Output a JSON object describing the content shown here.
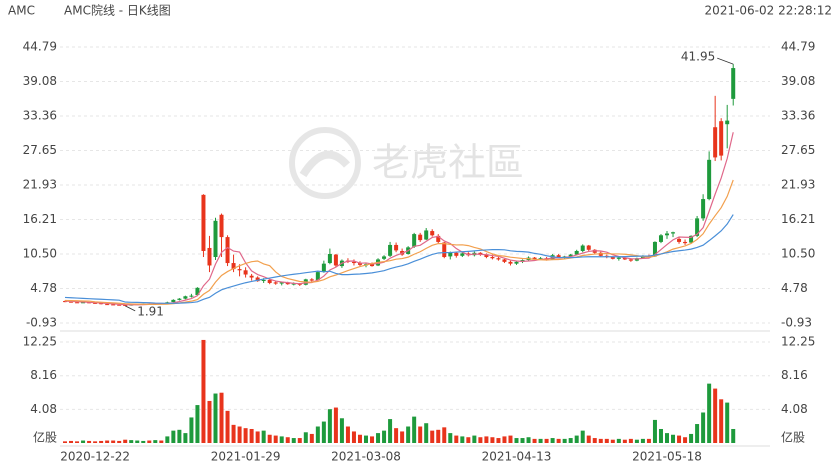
{
  "chart_data": {
    "type": "candlestick",
    "symbol": "AMC",
    "title": "AMC院线 - 日K线图",
    "timestamp": "2021-06-02 22:28:12",
    "watermark": "老虎社區",
    "up_color": "#1e9a3c",
    "down_color": "#e8341c",
    "grid": true,
    "ylim": [
      -0.93,
      44.79
    ],
    "yticks": [
      -0.93,
      4.78,
      {
        "value": 10.5,
        "label": "10.50"
      },
      16.21,
      21.93,
      27.65,
      33.36,
      39.08,
      44.79
    ],
    "categories": [
      null,
      null,
      null,
      null,
      null,
      "2020-12-22",
      null,
      null,
      null,
      null,
      null,
      null,
      null,
      null,
      null,
      null,
      null,
      null,
      null,
      null,
      null,
      null,
      null,
      null,
      null,
      null,
      null,
      null,
      null,
      null,
      "2021-01-29",
      null,
      null,
      null,
      null,
      null,
      null,
      null,
      null,
      null,
      null,
      null,
      null,
      null,
      null,
      null,
      null,
      null,
      null,
      null,
      "2021-03-08",
      null,
      null,
      null,
      null,
      null,
      null,
      null,
      null,
      null,
      null,
      null,
      null,
      null,
      null,
      null,
      null,
      null,
      null,
      null,
      null,
      null,
      null,
      null,
      null,
      "2021-04-13",
      null,
      null,
      null,
      null,
      null,
      null,
      null,
      null,
      null,
      null,
      null,
      null,
      null,
      null,
      null,
      null,
      null,
      null,
      null,
      null,
      null,
      null,
      null,
      null,
      "2021-05-18",
      null,
      null,
      null,
      null,
      null,
      null,
      null,
      null,
      null,
      null,
      null
    ],
    "open": [
      2.7,
      2.6,
      2.5,
      2.45,
      2.5,
      2.4,
      2.35,
      2.2,
      2.15,
      2.1,
      2.05,
      2.0,
      2.12,
      2.2,
      2.25,
      2.2,
      2.3,
      2.3,
      2.55,
      2.9,
      3.1,
      3.5,
      3.7,
      20.3,
      11.5,
      10.0,
      17.0,
      13.3,
      9.0,
      8.0,
      7.8,
      6.9,
      6.6,
      6.1,
      6.2,
      5.8,
      5.6,
      5.8,
      5.5,
      5.6,
      5.4,
      6.3,
      6.2,
      7.6,
      9.0,
      10.4,
      8.5,
      9.4,
      9.2,
      9.0,
      8.6,
      8.9,
      8.6,
      9.7,
      10.2,
      12.0,
      11.0,
      10.5,
      11.7,
      13.7,
      12.9,
      14.3,
      13.5,
      12.4,
      10.1,
      10.7,
      10.2,
      10.6,
      10.3,
      10.7,
      10.4,
      10.0,
      9.8,
      9.6,
      9.2,
      8.9,
      9.2,
      9.5,
      9.9,
      9.6,
      9.8,
      9.6,
      10.3,
      9.9,
      10.1,
      10.4,
      11.0,
      11.9,
      11.2,
      10.7,
      10.2,
      10.0,
      9.7,
      9.9,
      9.6,
      9.4,
      9.8,
      10.2,
      10.1,
      12.5,
      13.6,
      13.9,
      13.0,
      12.5,
      12.4,
      13.5,
      16.4,
      19.6,
      31.5,
      32.5,
      32.0,
      36.2
    ],
    "high": [
      2.8,
      2.7,
      2.6,
      2.6,
      2.55,
      2.45,
      2.4,
      2.25,
      2.2,
      2.15,
      2.1,
      2.18,
      2.25,
      2.3,
      2.3,
      2.35,
      2.35,
      2.6,
      3.0,
      3.2,
      3.6,
      3.9,
      5.0,
      20.4,
      13.5,
      16.5,
      17.2,
      13.6,
      10.4,
      8.8,
      8.3,
      7.2,
      6.8,
      6.5,
      6.3,
      6.1,
      5.9,
      5.9,
      5.8,
      5.7,
      6.4,
      6.5,
      7.6,
      9.4,
      11.4,
      10.5,
      9.6,
      9.8,
      9.6,
      9.3,
      9.0,
      9.1,
      9.8,
      10.3,
      12.5,
      12.4,
      11.4,
      11.8,
      14.0,
      14.0,
      14.8,
      14.6,
      13.8,
      12.5,
      10.9,
      10.9,
      10.8,
      10.8,
      10.9,
      10.8,
      10.6,
      10.4,
      10.0,
      9.7,
      9.4,
      9.3,
      9.6,
      10.1,
      10.0,
      10.0,
      10.0,
      10.5,
      10.5,
      10.2,
      10.5,
      11.2,
      12.1,
      12.0,
      11.3,
      10.9,
      10.4,
      10.1,
      10.0,
      10.1,
      9.8,
      9.9,
      10.3,
      10.4,
      12.6,
      13.8,
      14.3,
      14.2,
      13.4,
      12.9,
      13.6,
      16.8,
      20.4,
      27.5,
      36.7,
      33.0,
      35.2,
      41.95
    ],
    "low": [
      2.5,
      2.45,
      2.4,
      2.4,
      2.35,
      2.25,
      2.15,
      2.1,
      2.05,
      1.98,
      1.91,
      1.95,
      2.08,
      2.15,
      2.15,
      2.15,
      2.2,
      2.28,
      2.5,
      2.8,
      3.0,
      3.3,
      3.6,
      10.0,
      7.5,
      9.5,
      10.0,
      8.5,
      7.5,
      6.8,
      6.6,
      6.1,
      5.9,
      5.7,
      5.5,
      5.4,
      5.3,
      5.4,
      5.3,
      5.2,
      5.3,
      5.8,
      6.1,
      7.4,
      8.8,
      8.3,
      8.2,
      9.0,
      8.6,
      8.5,
      8.3,
      8.4,
      8.5,
      9.5,
      10.0,
      10.8,
      10.2,
      10.4,
      11.5,
      12.5,
      12.8,
      13.4,
      12.2,
      9.8,
      9.6,
      9.9,
      10.0,
      10.1,
      10.1,
      10.2,
      9.8,
      9.6,
      9.4,
      9.0,
      8.6,
      8.7,
      9.0,
      9.3,
      9.4,
      9.5,
      9.4,
      9.5,
      9.8,
      9.6,
      9.9,
      10.3,
      10.8,
      11.0,
      10.5,
      10.0,
      9.8,
      9.6,
      9.4,
      9.5,
      9.2,
      9.3,
      9.7,
      9.9,
      10.0,
      12.3,
      13.0,
      13.3,
      12.2,
      12.0,
      12.2,
      13.3,
      16.0,
      19.4,
      25.9,
      26.0,
      28.0,
      35.1
    ],
    "close": [
      2.6,
      2.5,
      2.45,
      2.5,
      2.4,
      2.35,
      2.2,
      2.15,
      2.1,
      2.05,
      2.0,
      2.12,
      2.2,
      2.25,
      2.2,
      2.3,
      2.28,
      2.5,
      2.9,
      3.1,
      3.5,
      3.6,
      4.9,
      11.0,
      8.6,
      16.0,
      13.3,
      9.0,
      8.0,
      7.8,
      7.1,
      6.6,
      6.0,
      6.2,
      5.7,
      5.6,
      5.8,
      5.5,
      5.6,
      5.4,
      6.3,
      6.1,
      7.5,
      8.9,
      10.5,
      8.6,
      9.4,
      9.2,
      9.0,
      8.7,
      8.8,
      8.5,
      9.6,
      10.1,
      12.0,
      11.1,
      10.4,
      11.6,
      13.8,
      12.8,
      14.4,
      13.6,
      12.5,
      10.0,
      10.7,
      10.2,
      10.6,
      10.3,
      10.7,
      10.4,
      10.0,
      9.8,
      9.6,
      9.2,
      8.9,
      9.2,
      9.5,
      9.9,
      9.6,
      9.8,
      9.6,
      10.3,
      9.9,
      10.1,
      10.4,
      11.0,
      11.9,
      11.2,
      10.7,
      10.2,
      10.0,
      9.7,
      9.9,
      9.6,
      9.4,
      9.8,
      10.2,
      10.1,
      12.5,
      13.6,
      13.9,
      14.1,
      12.5,
      12.3,
      13.5,
      16.4,
      19.6,
      26.1,
      26.5,
      26.8,
      32.6,
      41.3
    ],
    "ma": [
      {
        "color": "#e0688a",
        "values": [
          2.7,
          2.65,
          2.6,
          2.55,
          2.5,
          2.44,
          2.38,
          2.32,
          2.24,
          2.17,
          2.1,
          2.08,
          2.09,
          2.12,
          2.15,
          2.21,
          2.25,
          2.31,
          2.44,
          2.62,
          2.86,
          3.12,
          3.6,
          5.22,
          6.32,
          8.82,
          10.76,
          11.58,
          10.98,
          10.82,
          9.04,
          7.7,
          7.1,
          6.74,
          6.32,
          6.02,
          5.86,
          5.76,
          5.64,
          5.58,
          5.72,
          5.78,
          6.18,
          6.84,
          7.86,
          8.32,
          8.98,
          9.32,
          9.34,
          8.98,
          9.02,
          8.84,
          8.92,
          9.14,
          9.8,
          10.26,
          10.64,
          11.04,
          11.78,
          11.94,
          12.6,
          13.24,
          13.42,
          12.66,
          12.24,
          11.4,
          10.8,
          10.36,
          10.5,
          10.44,
          10.4,
          10.24,
          10.1,
          9.8,
          9.5,
          9.34,
          9.28,
          9.34,
          9.42,
          9.6,
          9.68,
          9.84,
          9.84,
          9.94,
          10.06,
          10.34,
          10.66,
          10.92,
          11.04,
          11.0,
          10.8,
          10.36,
          10.1,
          9.88,
          9.72,
          9.68,
          9.78,
          9.82,
          10.4,
          11.24,
          12.06,
          12.84,
          13.32,
          13.28,
          13.26,
          13.76,
          14.86,
          17.58,
          20.42,
          23.08,
          26.32,
          30.66
        ]
      },
      {
        "color": "#f2a04e",
        "values": [
          2.8,
          2.78,
          2.75,
          2.72,
          2.7,
          2.57,
          2.52,
          2.46,
          2.4,
          2.34,
          2.27,
          2.23,
          2.2,
          2.18,
          2.16,
          2.16,
          2.17,
          2.2,
          2.28,
          2.38,
          2.54,
          2.69,
          2.96,
          3.83,
          4.47,
          5.84,
          6.94,
          7.59,
          8.1,
          8.57,
          8.93,
          9.23,
          9.34,
          8.86,
          8.57,
          7.53,
          6.78,
          6.43,
          6.19,
          5.95,
          5.87,
          5.82,
          5.97,
          6.24,
          6.72,
          7.02,
          7.38,
          7.75,
          8.09,
          8.42,
          8.67,
          8.91,
          9.12,
          9.24,
          9.39,
          9.64,
          9.74,
          9.98,
          10.46,
          10.87,
          11.43,
          11.94,
          12.23,
          12.22,
          12.09,
          12.0,
          12.02,
          11.89,
          11.58,
          11.34,
          10.9,
          10.52,
          10.23,
          10.15,
          9.97,
          9.87,
          9.76,
          9.72,
          9.61,
          9.55,
          9.51,
          9.56,
          9.59,
          9.68,
          9.83,
          10.01,
          10.25,
          10.38,
          10.49,
          10.53,
          10.57,
          10.51,
          10.51,
          10.46,
          10.36,
          10.24,
          10.07,
          9.96,
          10.14,
          10.48,
          10.87,
          11.31,
          11.57,
          11.84,
          12.25,
          12.91,
          13.85,
          15.45,
          16.85,
          18.17,
          20.04,
          22.76
        ]
      },
      {
        "color": "#4a8fd8",
        "values": [
          3.3,
          3.25,
          3.2,
          3.15,
          3.1,
          3.05,
          3.0,
          2.95,
          2.9,
          2.85,
          2.54,
          2.5,
          2.48,
          2.45,
          2.43,
          2.37,
          2.35,
          2.33,
          2.34,
          2.36,
          2.41,
          2.46,
          2.58,
          3.0,
          3.32,
          4.0,
          4.56,
          4.9,
          5.19,
          5.48,
          5.74,
          5.96,
          6.15,
          6.35,
          6.52,
          6.69,
          6.86,
          7.01,
          7.15,
          7.26,
          7.4,
          7.53,
          7.66,
          7.55,
          7.65,
          7.28,
          7.08,
          7.09,
          7.14,
          7.19,
          7.27,
          7.37,
          7.55,
          7.74,
          8.06,
          8.33,
          8.56,
          8.87,
          9.28,
          9.65,
          10.05,
          10.43,
          10.68,
          10.73,
          10.74,
          10.82,
          10.88,
          10.94,
          11.02,
          11.11,
          11.17,
          11.23,
          11.23,
          11.19,
          11.03,
          10.94,
          10.89,
          10.81,
          10.6,
          10.45,
          10.21,
          10.04,
          9.91,
          9.92,
          9.9,
          9.94,
          10.01,
          10.05,
          10.05,
          10.04,
          10.04,
          10.04,
          10.05,
          10.07,
          10.1,
          10.13,
          10.16,
          10.17,
          10.32,
          10.51,
          10.72,
          10.91,
          11.04,
          11.15,
          11.31,
          11.58,
          11.96,
          12.71,
          13.5,
          14.33,
          15.46,
          17.04
        ]
      }
    ],
    "volume": {
      "unit": "亿股",
      "ylim": [
        0,
        12.25
      ],
      "yticks": [
        4.08,
        8.16,
        12.25
      ],
      "values": [
        0.2,
        0.25,
        0.2,
        0.3,
        0.25,
        0.2,
        0.25,
        0.3,
        0.3,
        0.25,
        0.4,
        0.35,
        0.3,
        0.25,
        0.3,
        0.35,
        0.3,
        0.8,
        1.5,
        1.6,
        1.2,
        3.1,
        4.6,
        12.5,
        5.1,
        6.0,
        6.1,
        3.9,
        2.2,
        2.0,
        1.8,
        1.7,
        1.4,
        1.5,
        1.0,
        0.9,
        0.8,
        0.7,
        0.6,
        0.6,
        1.3,
        1.1,
        2.0,
        2.6,
        4.1,
        4.3,
        3.0,
        2.0,
        1.4,
        1.0,
        0.9,
        0.8,
        1.2,
        1.5,
        2.9,
        1.8,
        1.4,
        2.0,
        3.2,
        2.0,
        2.4,
        1.5,
        1.6,
        1.9,
        1.2,
        0.9,
        0.8,
        0.7,
        0.9,
        0.7,
        0.8,
        0.7,
        0.6,
        0.8,
        0.9,
        0.6,
        0.6,
        0.7,
        0.5,
        0.5,
        0.5,
        0.6,
        0.5,
        0.5,
        0.6,
        0.9,
        1.5,
        0.9,
        0.6,
        0.5,
        0.5,
        0.4,
        0.5,
        0.4,
        0.5,
        0.4,
        0.5,
        0.5,
        2.8,
        1.7,
        1.2,
        1.0,
        0.9,
        0.7,
        1.1,
        2.3,
        3.7,
        7.2,
        6.6,
        5.3,
        4.9,
        1.7
      ]
    }
  }
}
